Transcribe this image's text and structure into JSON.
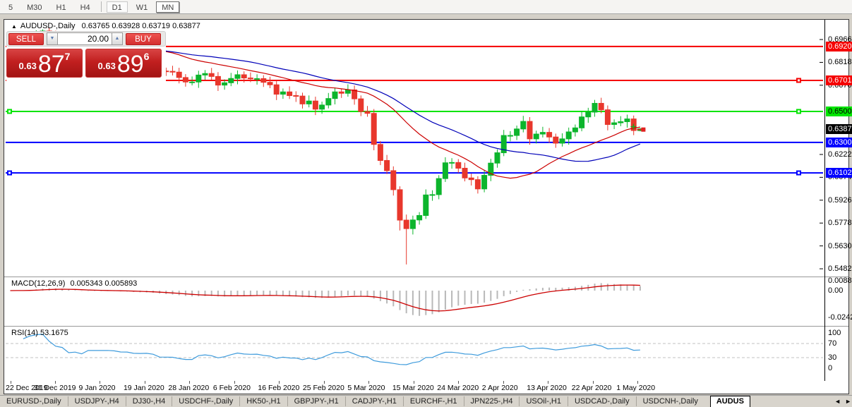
{
  "toolbar": {
    "timeframes": [
      {
        "label": "5",
        "state": "flat"
      },
      {
        "label": "M30",
        "state": "flat"
      },
      {
        "label": "H1",
        "state": "flat"
      },
      {
        "label": "H4",
        "state": "flat"
      },
      {
        "label": "|",
        "state": "sep"
      },
      {
        "label": "D1",
        "state": "active"
      },
      {
        "label": "W1",
        "state": "flat"
      },
      {
        "label": "MN",
        "state": "raised"
      }
    ]
  },
  "chart": {
    "title": "AUDUSD-,Daily",
    "ohlc_text": "0.63765 0.63928 0.63719 0.63877",
    "collapse_arrow": "▲"
  },
  "trade_panel": {
    "sell_label": "SELL",
    "buy_label": "BUY",
    "volume": "20.00",
    "down_glyph": "▼",
    "up_glyph": "▲",
    "sell_price": {
      "frac": "0.63",
      "big": "87",
      "sup": "7"
    },
    "buy_price": {
      "frac": "0.63",
      "big": "89",
      "sup": "6"
    }
  },
  "chart_data": {
    "type": "candlestick",
    "symbol": "AUDUSD-",
    "timeframe": "Daily",
    "title": "AUDUSD-,Daily",
    "current_bar": {
      "open": 0.63765,
      "high": 0.63928,
      "low": 0.63719,
      "close": 0.63877
    },
    "y_axis_ticks": [
      "0.69660",
      "0.68180",
      "0.66700",
      "0.62220",
      "0.60740",
      "0.59260",
      "0.57780",
      "0.56300",
      "0.54820"
    ],
    "y_range_top": 0.70848,
    "y_range_bottom": 0.5432,
    "x_labels": [
      "22 Dec 2019",
      "31 Dec 2019",
      "9 Jan 2020",
      "19 Jan 2020",
      "28 Jan 2020",
      "6 Feb 2020",
      "16 Feb 2020",
      "25 Feb 2020",
      "5 Mar 2020",
      "15 Mar 2020",
      "24 Mar 2020",
      "2 Apr 2020",
      "13 Apr 2020",
      "22 Apr 2020",
      "1 May 2020"
    ],
    "first_open": 0.6895,
    "closes": [
      0.69,
      0.6925,
      0.692,
      0.6946,
      0.699,
      0.7021,
      0.6987,
      0.695,
      0.6938,
      0.6866,
      0.6874,
      0.6839,
      0.6901,
      0.6902,
      0.6902,
      0.6903,
      0.6895,
      0.6873,
      0.6871,
      0.6845,
      0.6843,
      0.6845,
      0.6827,
      0.6762,
      0.676,
      0.6755,
      0.672,
      0.6691,
      0.6691,
      0.6736,
      0.6746,
      0.6727,
      0.6671,
      0.6686,
      0.6714,
      0.6738,
      0.6717,
      0.6712,
      0.6713,
      0.6689,
      0.6673,
      0.6612,
      0.6627,
      0.6603,
      0.66,
      0.6549,
      0.6568,
      0.6515,
      0.6542,
      0.6584,
      0.6627,
      0.6618,
      0.664,
      0.6582,
      0.65,
      0.6488,
      0.6287,
      0.6183,
      0.6117,
      0.5994,
      0.5797,
      0.5742,
      0.5798,
      0.5827,
      0.596,
      0.5962,
      0.6066,
      0.6168,
      0.617,
      0.6133,
      0.607,
      0.6059,
      0.5999,
      0.6087,
      0.6166,
      0.6233,
      0.6345,
      0.6345,
      0.6387,
      0.6436,
      0.6323,
      0.6354,
      0.6365,
      0.6335,
      0.6295,
      0.6323,
      0.6368,
      0.6394,
      0.6465,
      0.6496,
      0.6553,
      0.6511,
      0.6416,
      0.6427,
      0.6434,
      0.6452,
      0.6377,
      0.63877
    ],
    "bar_overrides": {
      "5": {
        "high": 0.7032
      },
      "60": {
        "low": 0.573
      },
      "61": {
        "low": 0.551
      },
      "97": {
        "open": 0.63765,
        "high": 0.63928,
        "low": 0.63719,
        "close": 0.63877
      }
    },
    "up_color": "#0cb52c",
    "down_color": "#e8372c",
    "levels": [
      {
        "price": 0.69208,
        "label": "0.69208",
        "color": "#f50000",
        "text_color": "#ffffff",
        "handles": false
      },
      {
        "price": 0.67014,
        "label": "0.67014",
        "color": "#f50000",
        "text_color": "#ffffff",
        "handles": true
      },
      {
        "price": 0.65005,
        "label": "0.65005",
        "color": "#00e400",
        "text_color": "#000000",
        "handles": true
      },
      {
        "price": 0.63002,
        "label": "0.63002",
        "color": "#0000ff",
        "text_color": "#ffffff",
        "handles": false
      },
      {
        "price": 0.61028,
        "label": "0.61028",
        "color": "#0000ff",
        "text_color": "#ffffff",
        "handles": true
      }
    ],
    "current_price_badge": {
      "price": 0.63877,
      "label": "0.63877",
      "color": "#000000",
      "text_color": "#ffffff"
    },
    "moving_averages": [
      {
        "period": 22,
        "color": "#cc0000",
        "name": "fast-ma"
      },
      {
        "period": 34,
        "color": "#0000b8",
        "name": "slow-ma"
      }
    ],
    "markers": [
      {
        "shape": "cross",
        "color": "#1ca81c",
        "price": 0.6402
      },
      {
        "shape": "square",
        "color": "#e22222",
        "price": 0.6383
      }
    ],
    "macd": {
      "label": "MACD(12,26,9)",
      "display_values": "0.005343 0.005893",
      "fast": 12,
      "slow": 26,
      "signal": 9,
      "axis_labels": [
        {
          "v": 0.008833,
          "t": "0.008833"
        },
        {
          "v": 0,
          "t": "0.00"
        },
        {
          "v": -0.02428,
          "t": "-0.02428"
        }
      ],
      "hist_color": "#b8b8b8",
      "signal_color": "#cc0000"
    },
    "rsi": {
      "label": "RSI(14) 53.1675",
      "period": 14,
      "axis_labels": [
        100,
        70,
        30,
        0
      ],
      "grid_levels": [
        70,
        30
      ],
      "color": "#3e9bdc"
    }
  },
  "tabs": {
    "items": [
      "EURUSD-,Daily",
      "USDJPY-,H4",
      "DJ30-,H4",
      "USDCHF-,Daily",
      "HK50-,H1",
      "GBPJPY-,H1",
      "CADJPY-,H1",
      "EURCHF-,H1",
      "JPN225-,H4",
      "USOil-,H1",
      "USDCAD-,Daily",
      "USDCNH-,Daily"
    ],
    "active": "AUDUS",
    "left_arrow": "◄",
    "right_arrow": "►"
  }
}
